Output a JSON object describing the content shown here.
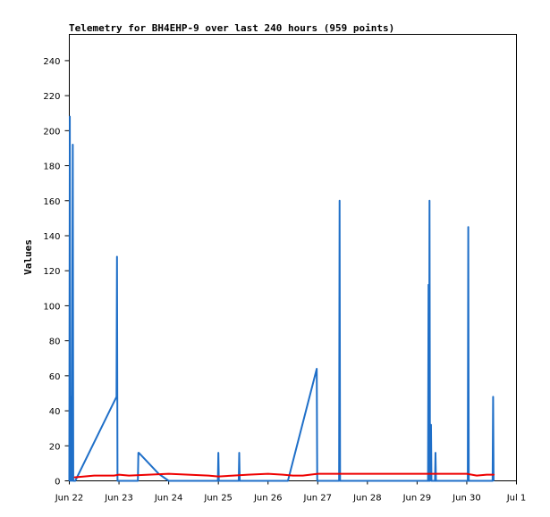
{
  "chart_data": {
    "type": "line",
    "title": "Telemetry for BH4EHP-9 over last 240 hours (959 points)",
    "ylabel": "Values",
    "xlabel": "",
    "ylim": [
      0,
      255
    ],
    "y_ticks": [
      0,
      20,
      40,
      60,
      80,
      100,
      120,
      140,
      160,
      180,
      200,
      220,
      240
    ],
    "x_ticks": [
      {
        "label": "Jun 22",
        "day": 0
      },
      {
        "label": "Jun 23",
        "day": 1
      },
      {
        "label": "Jun 24",
        "day": 2
      },
      {
        "label": "Jun 25",
        "day": 3
      },
      {
        "label": "Jun 26",
        "day": 4
      },
      {
        "label": "Jun 27",
        "day": 5
      },
      {
        "label": "Jun 28",
        "day": 6
      },
      {
        "label": "Jun 29",
        "day": 7
      },
      {
        "label": "Jun 30",
        "day": 8
      },
      {
        "label": "Jul 1",
        "day": 9
      }
    ],
    "xlim_days": [
      0,
      9
    ],
    "grid": false,
    "series": [
      {
        "color": "#1f6fc8",
        "points": [
          [
            0.0,
            0
          ],
          [
            0.01,
            208
          ],
          [
            0.02,
            0
          ],
          [
            0.04,
            48
          ],
          [
            0.05,
            0
          ],
          [
            0.07,
            192
          ],
          [
            0.08,
            0
          ],
          [
            0.12,
            0
          ],
          [
            0.95,
            48
          ],
          [
            0.96,
            128
          ],
          [
            0.97,
            0
          ],
          [
            1.38,
            0
          ],
          [
            1.39,
            16
          ],
          [
            1.4,
            16
          ],
          [
            1.8,
            4
          ],
          [
            2.0,
            0
          ],
          [
            2.99,
            0
          ],
          [
            3.0,
            16
          ],
          [
            3.01,
            0
          ],
          [
            3.41,
            0
          ],
          [
            3.42,
            16
          ],
          [
            3.43,
            0
          ],
          [
            4.4,
            0
          ],
          [
            4.98,
            64
          ],
          [
            4.99,
            0
          ],
          [
            5.43,
            0
          ],
          [
            5.44,
            160
          ],
          [
            5.45,
            0
          ],
          [
            7.22,
            0
          ],
          [
            7.23,
            112
          ],
          [
            7.24,
            0
          ],
          [
            7.25,
            160
          ],
          [
            7.26,
            0
          ],
          [
            7.28,
            32
          ],
          [
            7.29,
            0
          ],
          [
            7.36,
            0
          ],
          [
            7.37,
            16
          ],
          [
            7.38,
            0
          ],
          [
            8.02,
            0
          ],
          [
            8.03,
            145
          ],
          [
            8.04,
            0
          ],
          [
            8.52,
            0
          ],
          [
            8.53,
            48
          ],
          [
            8.54,
            0
          ]
        ]
      },
      {
        "color": "#ee0000",
        "points": [
          [
            0.1,
            2
          ],
          [
            0.5,
            3
          ],
          [
            0.9,
            3
          ],
          [
            1.0,
            3.5
          ],
          [
            1.2,
            3
          ],
          [
            1.6,
            3.5
          ],
          [
            2.0,
            4
          ],
          [
            2.4,
            3.5
          ],
          [
            2.8,
            3
          ],
          [
            3.0,
            2.5
          ],
          [
            3.3,
            3
          ],
          [
            3.6,
            3.5
          ],
          [
            4.0,
            4
          ],
          [
            4.3,
            3.5
          ],
          [
            4.5,
            3
          ],
          [
            4.7,
            3
          ],
          [
            5.0,
            4
          ],
          [
            5.5,
            4
          ],
          [
            6.0,
            4
          ],
          [
            6.5,
            4
          ],
          [
            7.0,
            4
          ],
          [
            7.3,
            4
          ],
          [
            7.6,
            4
          ],
          [
            8.0,
            4
          ],
          [
            8.2,
            3
          ],
          [
            8.4,
            3.5
          ],
          [
            8.55,
            3.5
          ]
        ]
      }
    ]
  }
}
